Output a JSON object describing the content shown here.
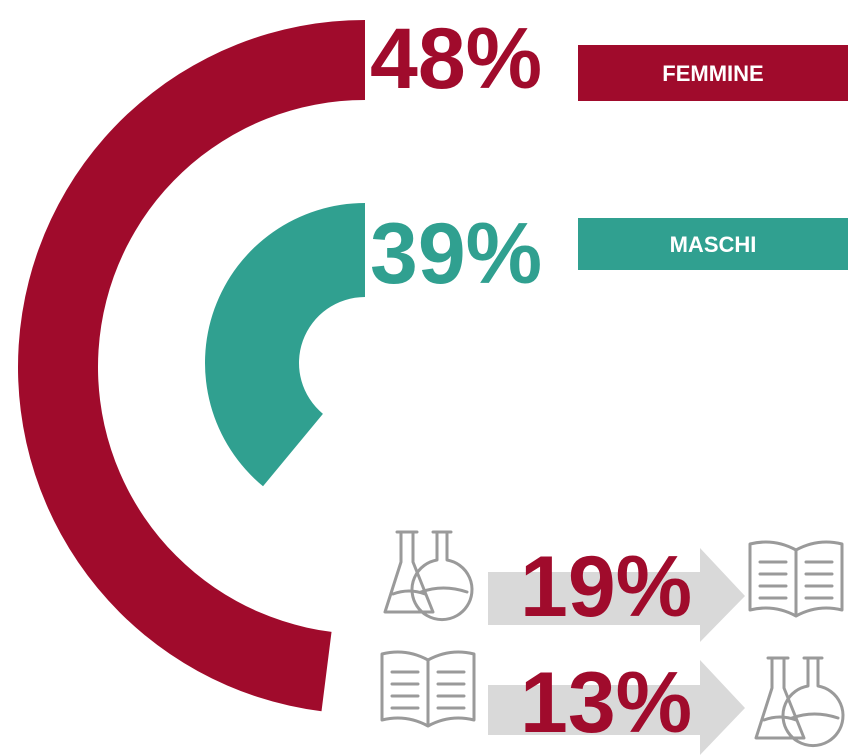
{
  "chart_data": {
    "type": "radial_bar",
    "categories": [
      "FEMMINE",
      "MASCHI"
    ],
    "values": [
      48,
      39
    ],
    "value_labels": [
      "48%",
      "39%"
    ],
    "colors": [
      "#a00b2c",
      "#30a090"
    ]
  },
  "flows": [
    "19%",
    "13%"
  ]
}
